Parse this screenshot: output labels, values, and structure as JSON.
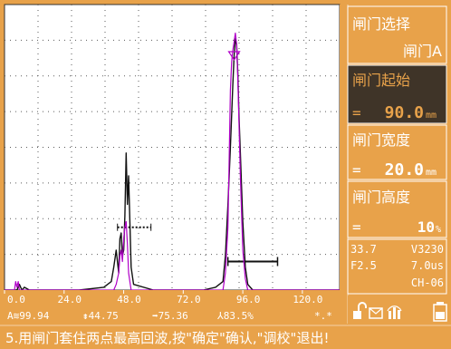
{
  "colors": {
    "panel_bg": "#e8a24a",
    "panel_active_bg": "#3f3428",
    "panel_text": "#ffffff",
    "panel_text_dark": "#1a1a1a",
    "grid_bg": "#ffffff",
    "grid_dots": "#5a5a5a",
    "trace_black": "#111111",
    "trace_magenta": "#b000c8",
    "gate_color": "#111111"
  },
  "menu": {
    "gate_select": {
      "title": "闸门选择",
      "value": "闸门A"
    },
    "gate_start": {
      "title": "闸门起始",
      "prefix": "=",
      "value": "90.0",
      "unit": "mm",
      "active": true
    },
    "gate_width": {
      "title": "闸门宽度",
      "prefix": "=",
      "value": "20.0",
      "unit": "mm"
    },
    "gate_height": {
      "title": "闸门高度",
      "prefix": "=",
      "value": "10",
      "unit": "%"
    }
  },
  "status_panel": {
    "row1_left": "33.7",
    "row1_right": "V3230",
    "row2_left": "F2.5",
    "row2_right": "7.0us",
    "row3_right": "CH-06"
  },
  "chart_data": {
    "type": "line",
    "x_ticks": [
      "0.0",
      "24.0",
      "48.0",
      "72.0",
      "96.0",
      "120.0"
    ],
    "xlim": [
      0,
      135
    ],
    "ylim": [
      0,
      100
    ],
    "grid": true,
    "series": [
      {
        "color": "#111111",
        "x": [
          0,
          5,
          6,
          7,
          8,
          10,
          20,
          30,
          40,
          43,
          44,
          45,
          45.5,
          46,
          46.5,
          47,
          47.5,
          48,
          48.5,
          49,
          49.5,
          50,
          51,
          52,
          60,
          80,
          85,
          88,
          89,
          90,
          91,
          92,
          92.5,
          93,
          93.5,
          94,
          94.5,
          95,
          96,
          97,
          98,
          100,
          110,
          120,
          130,
          135
        ],
        "y": [
          0,
          0,
          2,
          0,
          1,
          0,
          0,
          0,
          1,
          3,
          8,
          14,
          10,
          6,
          18,
          20,
          12,
          14,
          26,
          48,
          30,
          40,
          8,
          2,
          0,
          0,
          1,
          3,
          12,
          30,
          50,
          72,
          82,
          88,
          86,
          76,
          60,
          48,
          24,
          8,
          2,
          0,
          0,
          0,
          0,
          0
        ]
      },
      {
        "color": "#b000c8",
        "x": [
          0,
          4,
          4.5,
          5,
          5.5,
          6,
          10,
          30,
          44,
          45,
          46,
          46.5,
          47,
          47.5,
          48,
          48.5,
          49,
          49.5,
          50,
          51,
          85,
          88,
          89,
          90,
          90.5,
          91,
          91.5,
          92,
          92.5,
          93,
          93.5,
          94,
          95,
          96,
          97,
          98,
          130,
          135
        ],
        "y": [
          0,
          0,
          3,
          1,
          3,
          0,
          0,
          0,
          0,
          2,
          6,
          12,
          14,
          10,
          18,
          22,
          24,
          16,
          6,
          0,
          0,
          0,
          6,
          22,
          45,
          70,
          80,
          84,
          87,
          90,
          86,
          74,
          40,
          14,
          4,
          0,
          0,
          0
        ]
      }
    ],
    "gates": [
      {
        "label": "dashed",
        "start": 45.5,
        "end": 59,
        "level": 22
      },
      {
        "label": "A",
        "start": 90,
        "end": 110,
        "level": 10
      }
    ],
    "peak_marker_x": 92.5,
    "readouts": {
      "item1": "A≋99.94",
      "item2": "⇟44.75",
      "item3": "➡75.36",
      "item4": "⅄83.5%",
      "item5": "*.*"
    }
  },
  "message": "5.用闸门套住两点最高回波,按\"确定\"确认,\"调校\"退出!"
}
